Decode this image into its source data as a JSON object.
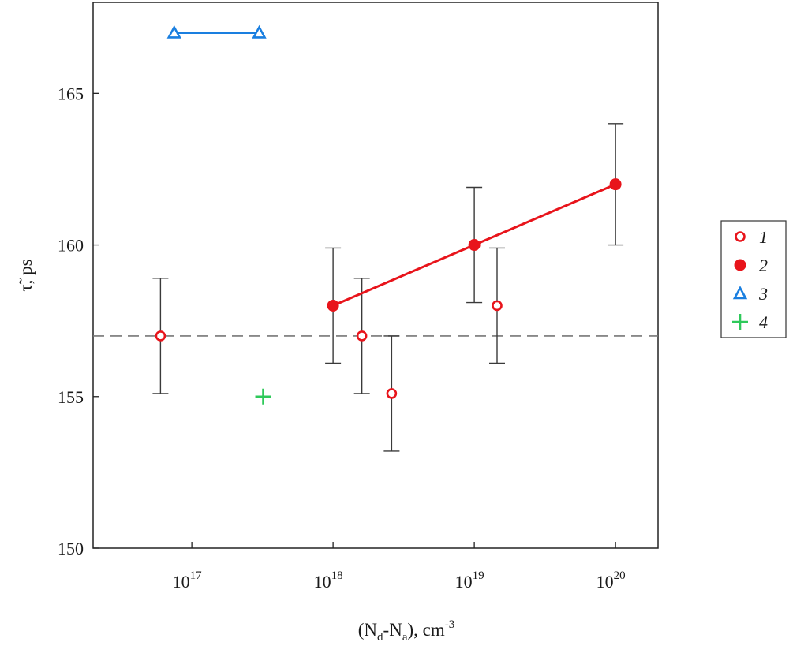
{
  "chart_data": {
    "type": "scatter",
    "x_scale": "log",
    "xlabel": {
      "main": "(N",
      "sub1": "d",
      "mid": "-N",
      "sub2": "a",
      "tail": "), cm",
      "sup": "-3"
    },
    "ylabel": "τ̃, ps",
    "xlim": [
      2e+16,
      2e+20
    ],
    "ylim": [
      150,
      168
    ],
    "x_ticks": [
      {
        "value": 1e+17,
        "base": "10",
        "exp": "17"
      },
      {
        "value": 1e+18,
        "base": "10",
        "exp": "18"
      },
      {
        "value": 1e+19,
        "base": "10",
        "exp": "19"
      },
      {
        "value": 1e+20,
        "base": "10",
        "exp": "20"
      }
    ],
    "y_ticks": [
      150,
      155,
      160,
      165
    ],
    "grid": false,
    "reference_line": {
      "y": 157,
      "style": "dashed",
      "color": "#777777"
    },
    "series": [
      {
        "name": "1",
        "marker": "open-circle",
        "color": "#e8141b",
        "connected": false,
        "points": [
          {
            "x": 6e+16,
            "y": 157,
            "err": 1.9
          },
          {
            "x": 1.6e+18,
            "y": 157,
            "err": 1.9
          },
          {
            "x": 2.6e+18,
            "y": 155.1,
            "err": 1.9
          },
          {
            "x": 1.45e+19,
            "y": 158,
            "err": 1.9
          }
        ]
      },
      {
        "name": "2",
        "marker": "filled-circle",
        "color": "#e8141b",
        "connected": true,
        "points": [
          {
            "x": 1e+18,
            "y": 158,
            "err": 1.9
          },
          {
            "x": 1e+19,
            "y": 160,
            "err": 1.9
          },
          {
            "x": 1e+20,
            "y": 162,
            "err": 2.0
          }
        ]
      },
      {
        "name": "3",
        "marker": "open-triangle",
        "color": "#1a7fe0",
        "connected": true,
        "points": [
          {
            "x": 7.5e+16,
            "y": 167
          },
          {
            "x": 3e+17,
            "y": 167
          }
        ]
      },
      {
        "name": "4",
        "marker": "plus",
        "color": "#2ec95a",
        "connected": false,
        "points": [
          {
            "x": 3.2e+17,
            "y": 155
          }
        ]
      }
    ],
    "legend": {
      "placement": "right",
      "entries": [
        "1",
        "2",
        "3",
        "4"
      ]
    }
  }
}
